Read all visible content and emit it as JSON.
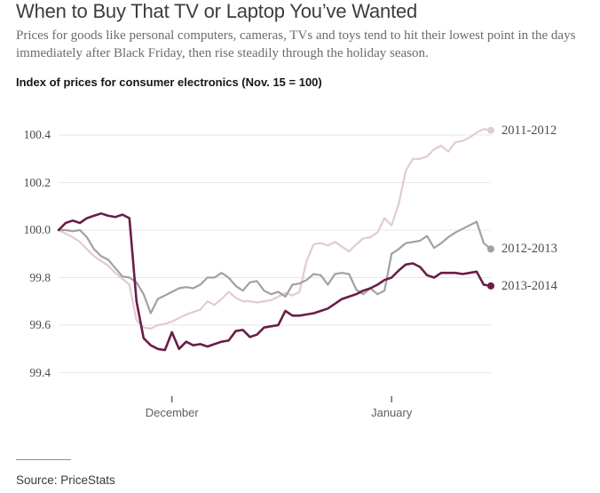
{
  "header": {
    "title": "When to Buy That TV or Laptop You’ve Wanted",
    "subtitle": "Prices for goods like personal computers, cameras, TVs and toys tend to hit their lowest point in the days immediately after Black Friday, then rise steadily through the holiday season.",
    "kicker": "Index of prices for consumer electronics (Nov. 15 = 100)"
  },
  "source": {
    "label": "Source: PriceStats"
  },
  "chart_data": {
    "type": "line",
    "title": "Index of prices for consumer electronics (Nov. 15 = 100)",
    "x_unit": "days, Nov. 15 through mid-January",
    "x_ticks": [
      {
        "label": "December",
        "day_index": 16
      },
      {
        "label": "January",
        "day_index": 47
      }
    ],
    "y_ticks": [
      "100.4",
      "100.2",
      "100.0",
      "99.8",
      "99.6",
      "99.4"
    ],
    "ylim": [
      99.35,
      100.48
    ],
    "grid": "horizontal-only",
    "grid_color": "#e7e7e7",
    "tick_color": "#444444",
    "legend_position": "right-of-line-ends",
    "series": [
      {
        "name": "2011-2012",
        "color": "#e2cad6",
        "line_width": 2.2,
        "values": [
          100.0,
          99.985,
          99.97,
          99.95,
          99.92,
          99.89,
          99.87,
          99.85,
          99.82,
          99.795,
          99.77,
          99.62,
          99.59,
          99.585,
          99.6,
          99.605,
          99.615,
          99.63,
          99.645,
          99.655,
          99.665,
          99.7,
          99.685,
          99.71,
          99.74,
          99.715,
          99.7,
          99.7,
          99.695,
          99.7,
          99.705,
          99.72,
          99.735,
          99.725,
          99.74,
          99.87,
          99.94,
          99.945,
          99.935,
          99.95,
          99.93,
          99.91,
          99.94,
          99.965,
          99.97,
          99.99,
          100.05,
          100.02,
          100.11,
          100.25,
          100.3,
          100.3,
          100.31,
          100.34,
          100.355,
          100.33,
          100.37,
          100.375,
          100.39,
          100.41,
          100.425,
          100.42
        ]
      },
      {
        "name": "2012-2013",
        "color": "#a3a19d",
        "line_width": 2.2,
        "values": [
          100.0,
          100.0,
          99.995,
          100.0,
          99.97,
          99.92,
          99.89,
          99.875,
          99.84,
          99.805,
          99.8,
          99.78,
          99.73,
          99.65,
          99.71,
          99.725,
          99.74,
          99.755,
          99.76,
          99.755,
          99.77,
          99.8,
          99.8,
          99.82,
          99.8,
          99.765,
          99.745,
          99.78,
          99.785,
          99.745,
          99.73,
          99.74,
          99.72,
          99.77,
          99.775,
          99.79,
          99.815,
          99.81,
          99.77,
          99.815,
          99.82,
          99.815,
          99.75,
          99.73,
          99.755,
          99.73,
          99.745,
          99.9,
          99.92,
          99.945,
          99.95,
          99.955,
          99.975,
          99.925,
          99.945,
          99.97,
          99.99,
          100.005,
          100.02,
          100.035,
          99.945,
          99.92
        ]
      },
      {
        "name": "2013-2014",
        "color": "#6a1d47",
        "line_width": 2.6,
        "values": [
          100.0,
          100.03,
          100.04,
          100.03,
          100.05,
          100.06,
          100.07,
          100.06,
          100.055,
          100.065,
          100.05,
          99.7,
          99.545,
          99.515,
          99.5,
          99.495,
          99.57,
          99.5,
          99.53,
          99.515,
          99.52,
          99.51,
          99.52,
          99.53,
          99.535,
          99.575,
          99.58,
          99.55,
          99.56,
          99.59,
          99.595,
          99.6,
          99.66,
          99.64,
          99.64,
          99.645,
          99.65,
          99.66,
          99.67,
          99.69,
          99.71,
          99.72,
          99.73,
          99.745,
          99.755,
          99.77,
          99.79,
          99.8,
          99.83,
          99.855,
          99.86,
          99.845,
          99.81,
          99.8,
          99.82,
          99.82,
          99.82,
          99.815,
          99.82,
          99.825,
          99.77,
          99.765
        ]
      }
    ]
  }
}
